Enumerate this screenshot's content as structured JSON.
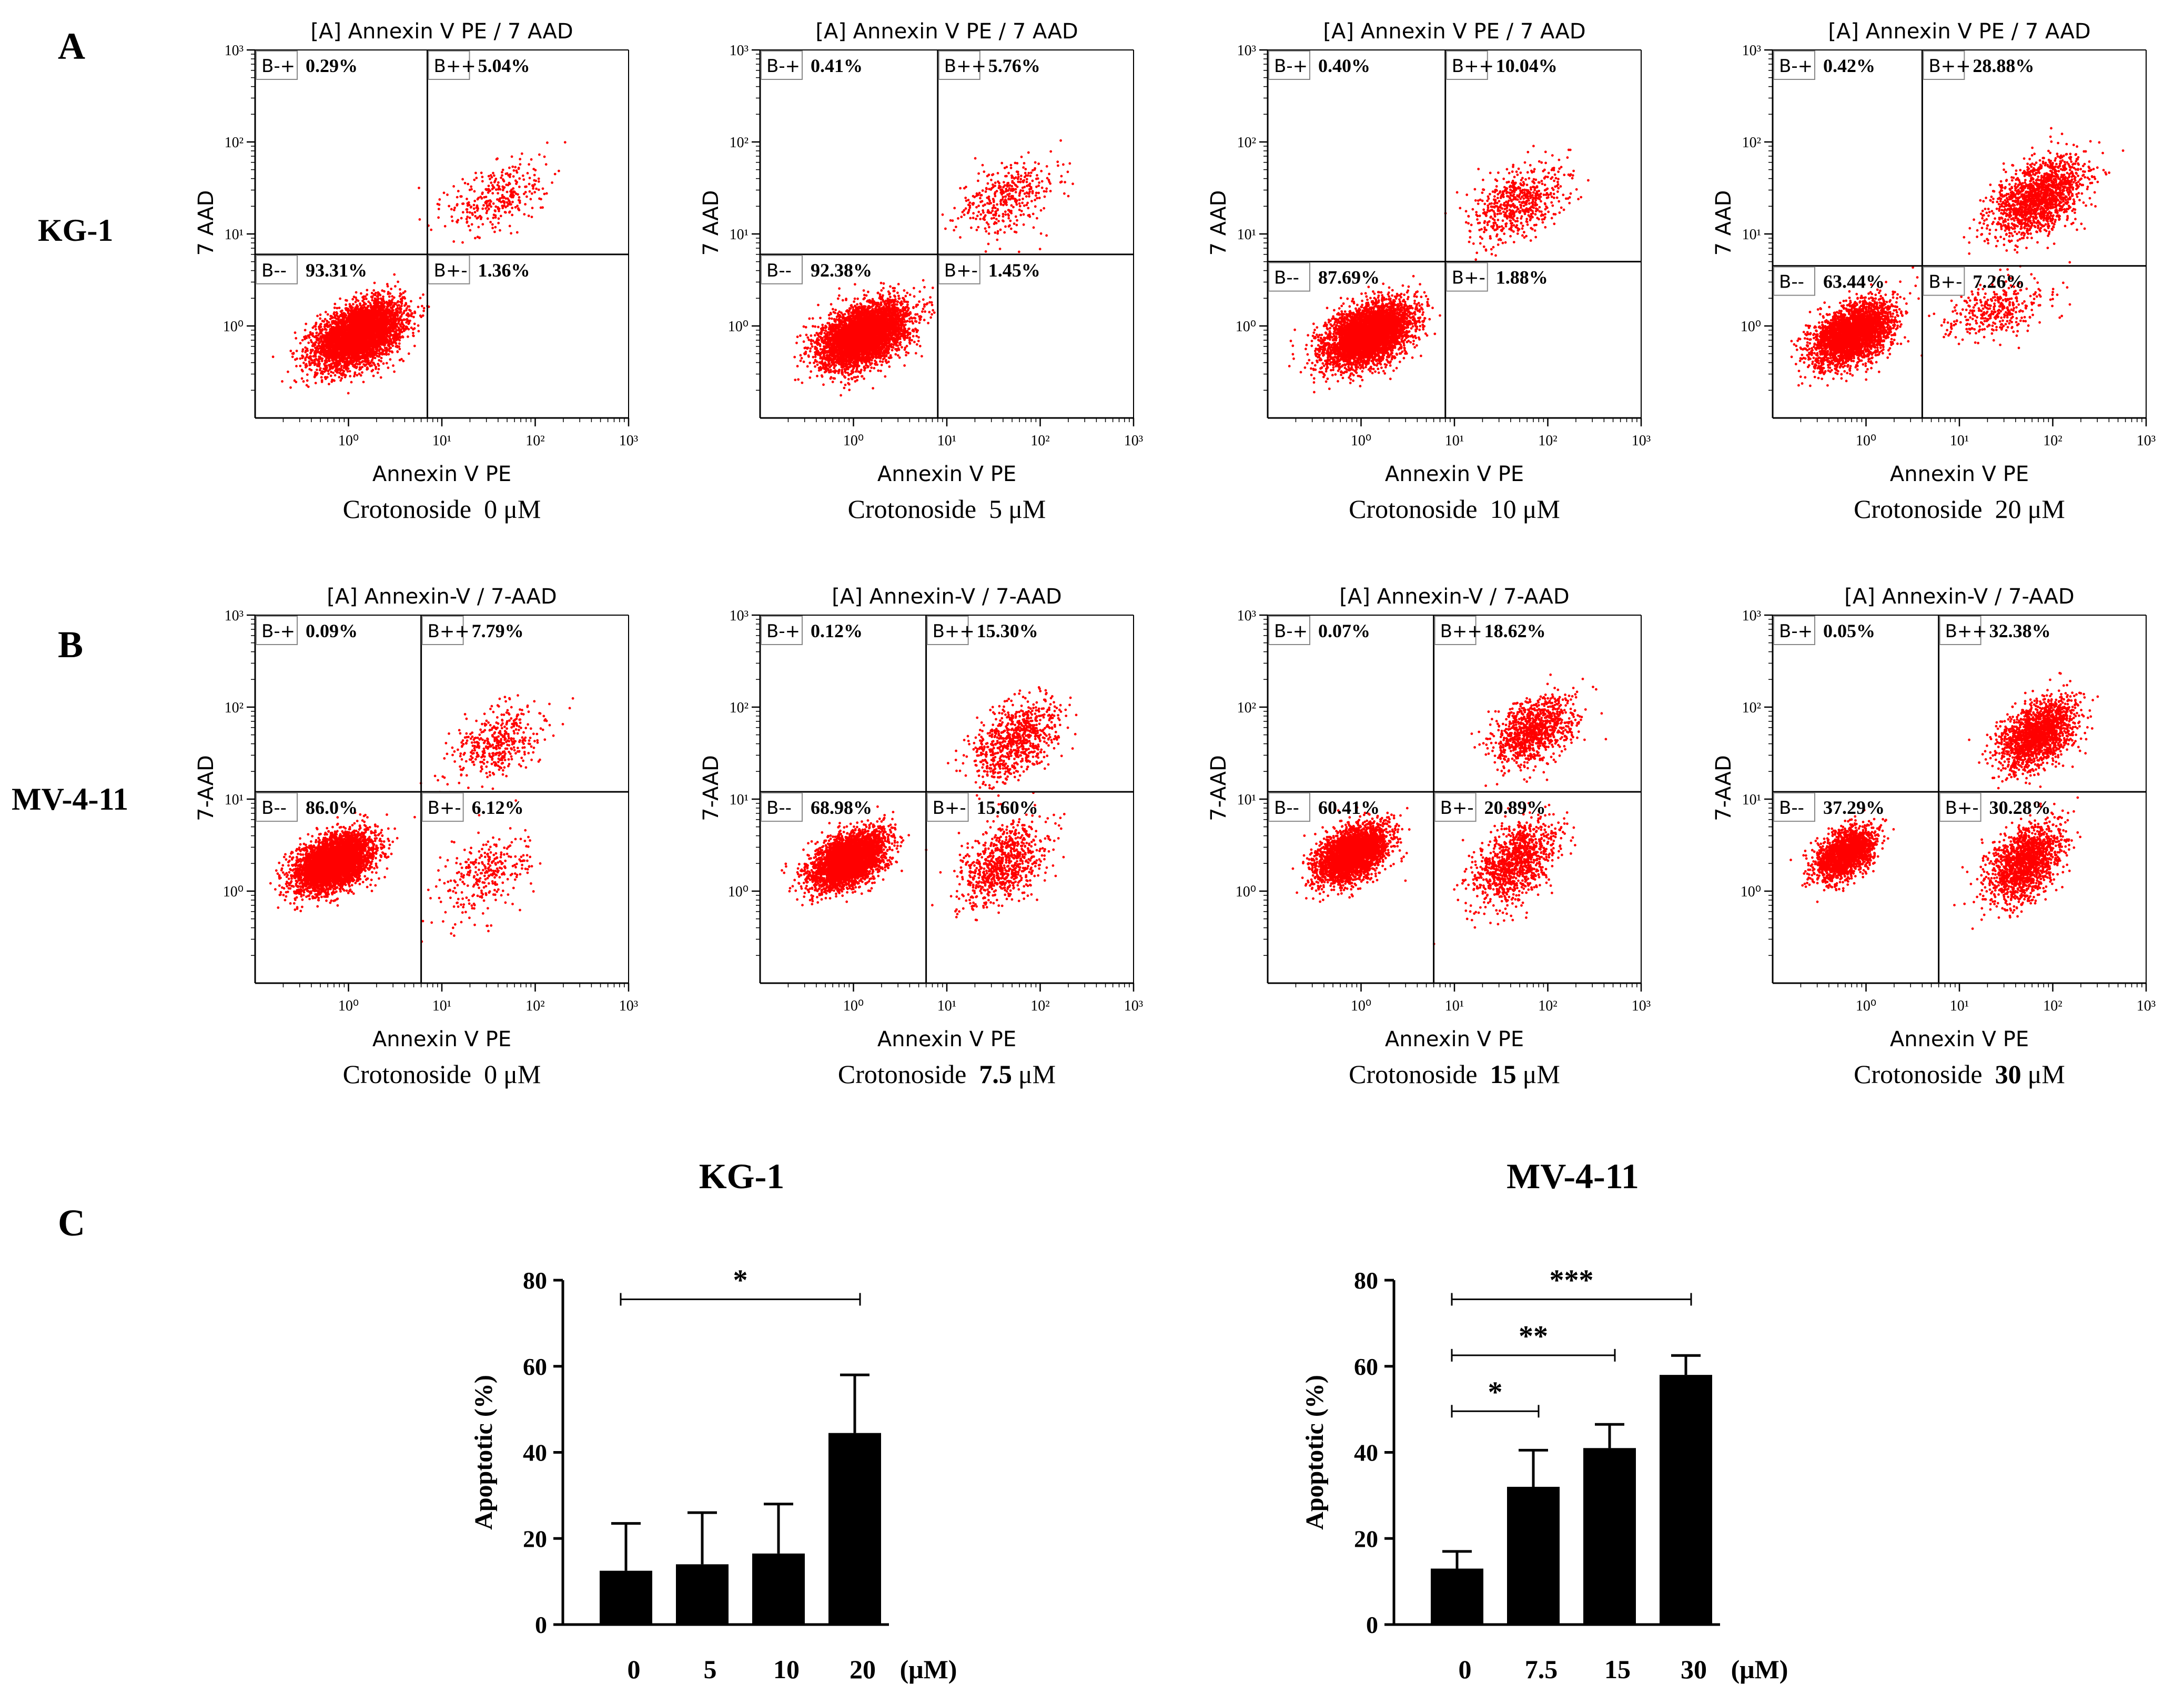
{
  "panel_labels": [
    "A",
    "B",
    "C"
  ],
  "row_labels": [
    "KG-1",
    "MV-4-11"
  ],
  "chart_data": [
    {
      "type": "scatter",
      "id": "a1",
      "title": "[A] Annexin V PE / 7 AAD",
      "xlabel": "Annexin V PE",
      "ylabel": "7 AAD",
      "caption": {
        "prefix": "Crotonoside",
        "dose": "0",
        "unit": "μM"
      },
      "axis": "log10",
      "xlim": [
        0.1,
        1000
      ],
      "ylim": [
        0.1,
        1000
      ],
      "gate": {
        "x": 7,
        "y": 6
      },
      "quadrants": {
        "ul": {
          "label": "B-+",
          "value": "0.29%"
        },
        "ur": {
          "label": "B++",
          "value": "5.04%"
        },
        "ll": {
          "label": "B--",
          "value": "93.31%"
        },
        "lr": {
          "label": "B+-",
          "value": "1.36%"
        }
      },
      "clusters": [
        {
          "weight": 0.93,
          "cx": 1.3,
          "cy": 0.8,
          "sx": 2.6,
          "sy": 2.2
        },
        {
          "weight": 0.065,
          "cx": 40,
          "cy": 25,
          "sx": 3,
          "sy": 2.6
        }
      ]
    },
    {
      "type": "scatter",
      "id": "a2",
      "title": "[A] Annexin V PE / 7 AAD",
      "xlabel": "Annexin V PE",
      "ylabel": "7 AAD",
      "caption": {
        "prefix": "Crotonoside",
        "dose": "5",
        "unit": "μM"
      },
      "axis": "log10",
      "xlim": [
        0.1,
        1000
      ],
      "ylim": [
        0.1,
        1000
      ],
      "gate": {
        "x": 8,
        "y": 6
      },
      "quadrants": {
        "ul": {
          "label": "B-+",
          "value": "0.41%"
        },
        "ur": {
          "label": "B++",
          "value": "5.76%"
        },
        "ll": {
          "label": "B--",
          "value": "92.38%"
        },
        "lr": {
          "label": "B+-",
          "value": "1.45%"
        }
      },
      "clusters": [
        {
          "weight": 0.92,
          "cx": 1.3,
          "cy": 0.8,
          "sx": 2.6,
          "sy": 2.2
        },
        {
          "weight": 0.075,
          "cx": 45,
          "cy": 25,
          "sx": 3,
          "sy": 2.6
        }
      ]
    },
    {
      "type": "scatter",
      "id": "a3",
      "title": "[A] Annexin V PE / 7 AAD",
      "xlabel": "Annexin V PE",
      "ylabel": "7 AAD",
      "caption": {
        "prefix": "Crotonoside",
        "dose": "10",
        "unit": "μM"
      },
      "axis": "log10",
      "xlim": [
        0.1,
        1000
      ],
      "ylim": [
        0.1,
        1000
      ],
      "gate": {
        "x": 8,
        "y": 5
      },
      "quadrants": {
        "ul": {
          "label": "B-+",
          "value": "0.40%"
        },
        "ur": {
          "label": "B++",
          "value": "10.04%"
        },
        "ll": {
          "label": "B--",
          "value": "87.69%"
        },
        "lr": {
          "label": "B+-",
          "value": "1.88%"
        }
      },
      "clusters": [
        {
          "weight": 0.87,
          "cx": 1.2,
          "cy": 0.8,
          "sx": 2.6,
          "sy": 2.2
        },
        {
          "weight": 0.12,
          "cx": 50,
          "cy": 22,
          "sx": 3,
          "sy": 2.6
        }
      ]
    },
    {
      "type": "scatter",
      "id": "a4",
      "title": "[A] Annexin V PE / 7 AAD",
      "xlabel": "Annexin V PE",
      "ylabel": "7 AAD",
      "caption": {
        "prefix": "Crotonoside",
        "dose": "20",
        "unit": "μM"
      },
      "axis": "log10",
      "xlim": [
        0.1,
        1000
      ],
      "ylim": [
        0.1,
        1000
      ],
      "gate": {
        "x": 4,
        "y": 4.5
      },
      "quadrants": {
        "ul": {
          "label": "B-+",
          "value": "0.42%"
        },
        "ur": {
          "label": "B++",
          "value": "28.88%"
        },
        "ll": {
          "label": "B--",
          "value": "63.44%"
        },
        "lr": {
          "label": "B+-",
          "value": "7.26%"
        }
      },
      "clusters": [
        {
          "weight": 0.62,
          "cx": 0.7,
          "cy": 0.8,
          "sx": 2.4,
          "sy": 2.2
        },
        {
          "weight": 0.31,
          "cx": 70,
          "cy": 25,
          "sx": 2.8,
          "sy": 2.6
        },
        {
          "weight": 0.07,
          "cx": 25,
          "cy": 1.5,
          "sx": 3.2,
          "sy": 2.2
        }
      ]
    },
    {
      "type": "scatter",
      "id": "b1",
      "title": "[A] Annexin-V / 7-AAD",
      "xlabel": "Annexin V PE",
      "ylabel": "7-AAD",
      "caption": {
        "prefix": "Crotonoside",
        "dose": "0",
        "unit": "μM"
      },
      "axis": "log10",
      "xlim": [
        0.1,
        1000
      ],
      "ylim": [
        0.1,
        1000
      ],
      "gate": {
        "x": 6,
        "y": 12
      },
      "quadrants": {
        "ul": {
          "label": "B-+",
          "value": "0.09%"
        },
        "ur": {
          "label": "B++",
          "value": "7.79%"
        },
        "ll": {
          "label": "B--",
          "value": "86.0%"
        },
        "lr": {
          "label": "B+-",
          "value": "6.12%"
        }
      },
      "clusters": [
        {
          "weight": 0.86,
          "cx": 0.7,
          "cy": 2,
          "sx": 2.3,
          "sy": 2.0
        },
        {
          "weight": 0.08,
          "cx": 40,
          "cy": 40,
          "sx": 2.8,
          "sy": 2.6
        },
        {
          "weight": 0.06,
          "cx": 30,
          "cy": 1.5,
          "sx": 3,
          "sy": 3
        }
      ]
    },
    {
      "type": "scatter",
      "id": "b2",
      "title": "[A] Annexin-V / 7-AAD",
      "xlabel": "Annexin V PE",
      "ylabel": "7-AAD",
      "caption": {
        "prefix": "Crotonoside",
        "dose": "7.5",
        "unit": "μM"
      },
      "axis": "log10",
      "xlim": [
        0.1,
        1000
      ],
      "ylim": [
        0.1,
        1000
      ],
      "gate": {
        "x": 6,
        "y": 12
      },
      "quadrants": {
        "ul": {
          "label": "B-+",
          "value": "0.12%"
        },
        "ur": {
          "label": "B++",
          "value": "15.30%"
        },
        "ll": {
          "label": "B--",
          "value": "68.98%"
        },
        "lr": {
          "label": "B+-",
          "value": "15.60%"
        }
      },
      "clusters": [
        {
          "weight": 0.69,
          "cx": 0.9,
          "cy": 2.2,
          "sx": 2.3,
          "sy": 2.0
        },
        {
          "weight": 0.155,
          "cx": 55,
          "cy": 45,
          "sx": 2.6,
          "sy": 2.6
        },
        {
          "weight": 0.155,
          "cx": 40,
          "cy": 2,
          "sx": 2.6,
          "sy": 2.8
        }
      ]
    },
    {
      "type": "scatter",
      "id": "b3",
      "title": "[A] Annexin-V / 7-AAD",
      "xlabel": "Annexin V PE",
      "ylabel": "7-AAD",
      "caption": {
        "prefix": "Crotonoside",
        "dose": "15",
        "unit": "μM"
      },
      "axis": "log10",
      "xlim": [
        0.1,
        1000
      ],
      "ylim": [
        0.1,
        1000
      ],
      "gate": {
        "x": 6,
        "y": 12
      },
      "quadrants": {
        "ul": {
          "label": "B-+",
          "value": "0.07%"
        },
        "ur": {
          "label": "B++",
          "value": "18.62%"
        },
        "ll": {
          "label": "B--",
          "value": "60.41%"
        },
        "lr": {
          "label": "B+-",
          "value": "20.89%"
        }
      },
      "clusters": [
        {
          "weight": 0.6,
          "cx": 0.8,
          "cy": 2.5,
          "sx": 2.2,
          "sy": 2.0
        },
        {
          "weight": 0.19,
          "cx": 70,
          "cy": 55,
          "sx": 2.5,
          "sy": 2.5
        },
        {
          "weight": 0.21,
          "cx": 45,
          "cy": 2,
          "sx": 2.6,
          "sy": 2.8
        }
      ]
    },
    {
      "type": "scatter",
      "id": "b4",
      "title": "[A] Annexin-V / 7-AAD",
      "xlabel": "Annexin V PE",
      "ylabel": "7-AAD",
      "caption": {
        "prefix": "Crotonoside",
        "dose": "30",
        "unit": "μM"
      },
      "axis": "log10",
      "xlim": [
        0.1,
        1000
      ],
      "ylim": [
        0.1,
        1000
      ],
      "gate": {
        "x": 6,
        "y": 12
      },
      "quadrants": {
        "ul": {
          "label": "B-+",
          "value": "0.05%"
        },
        "ur": {
          "label": "B++",
          "value": "32.38%"
        },
        "ll": {
          "label": "B--",
          "value": "37.29%"
        },
        "lr": {
          "label": "B+-",
          "value": "30.28%"
        }
      },
      "clusters": [
        {
          "weight": 0.37,
          "cx": 0.6,
          "cy": 2.5,
          "sx": 1.9,
          "sy": 1.9
        },
        {
          "weight": 0.33,
          "cx": 70,
          "cy": 50,
          "sx": 2.3,
          "sy": 2.4
        },
        {
          "weight": 0.3,
          "cx": 50,
          "cy": 2,
          "sx": 2.3,
          "sy": 2.6
        }
      ]
    },
    {
      "type": "bar",
      "id": "c1",
      "title": "KG-1",
      "categories": [
        "0",
        "5",
        "10",
        "20"
      ],
      "unit_label": "(μM)",
      "values": [
        12.5,
        14,
        16.5,
        44.5
      ],
      "errors": [
        11,
        12,
        11.5,
        13.5
      ],
      "ylabel": "Apoptotic (%)",
      "ylim": [
        0,
        80
      ],
      "yticks": [
        "0",
        "20",
        "40",
        "60",
        "80"
      ],
      "significance": [
        {
          "from": 0,
          "to": 3,
          "label": "*",
          "level": 78
        }
      ]
    },
    {
      "type": "bar",
      "id": "c2",
      "title": "MV-4-11",
      "categories": [
        "0",
        "7.5",
        "15",
        "30"
      ],
      "unit_label": "(μM)",
      "values": [
        13,
        32,
        41,
        58
      ],
      "errors": [
        4,
        8.5,
        5.5,
        4.5
      ],
      "ylabel": "Apoptotic (%)",
      "ylim": [
        0,
        80
      ],
      "yticks": [
        "0",
        "20",
        "40",
        "60",
        "80"
      ],
      "significance": [
        {
          "from": 0,
          "to": 1,
          "label": "*",
          "level": 52
        },
        {
          "from": 0,
          "to": 2,
          "label": "**",
          "level": 65
        },
        {
          "from": 0,
          "to": 3,
          "label": "***",
          "level": 78
        }
      ]
    }
  ],
  "tick_labels": {
    "log": [
      "10⁰",
      "10¹",
      "10²",
      "10³"
    ]
  },
  "colors": {
    "dots": "#ff0000",
    "axis": "#000000",
    "gate": "#000000",
    "bar": "#000000"
  }
}
